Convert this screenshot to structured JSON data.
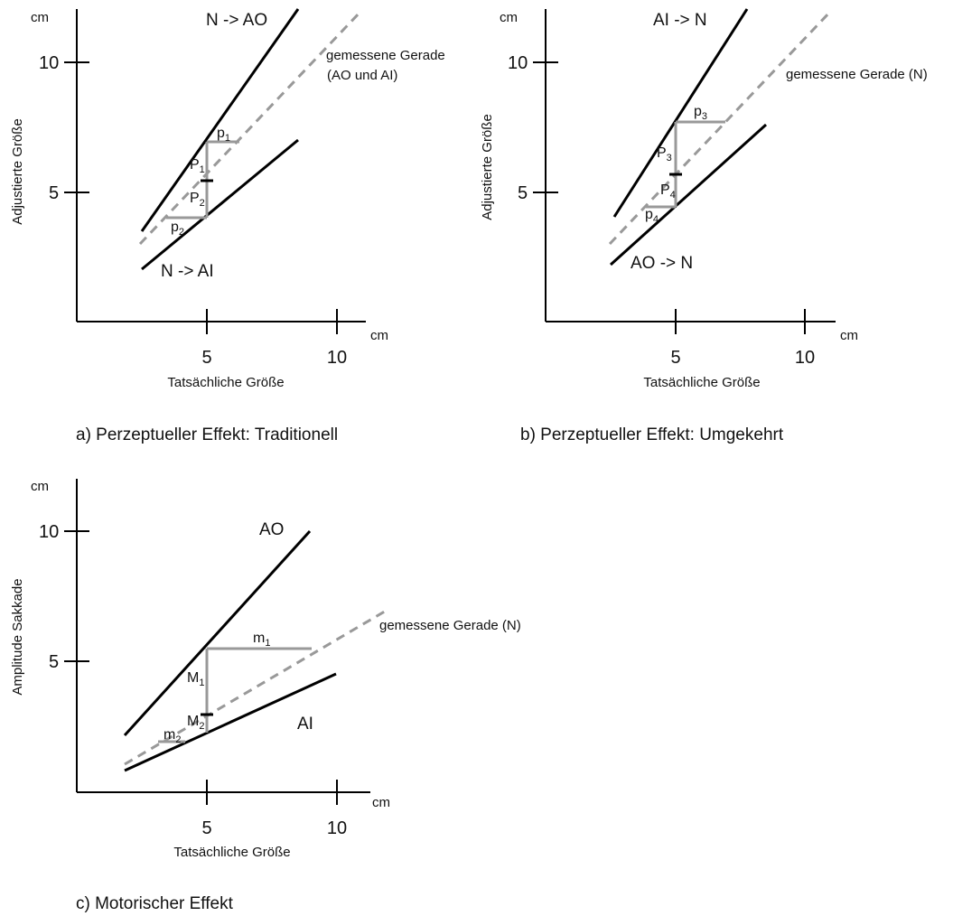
{
  "panels": [
    {
      "id": "a",
      "caption": "a) Perzeptueller Effekt: Traditionell",
      "xaxis": {
        "title": "Tatsächliche Größe",
        "unit": "cm",
        "ticks": [
          "5",
          "10"
        ]
      },
      "yaxis": {
        "title": "Adjustierte Größe",
        "unit": "cm",
        "ticks": [
          "5",
          "10"
        ]
      },
      "lines": [
        {
          "label": "N -> AO",
          "style": "solid",
          "x": [
            2.5,
            8.5
          ],
          "y": [
            3.5,
            11.9
          ]
        },
        {
          "label": "gemessene Gerade",
          "label_line2": "(AO und AI)",
          "style": "dashed",
          "x": [
            2.5,
            11
          ],
          "y": [
            3.0,
            11.9
          ]
        },
        {
          "label": "N -> AI",
          "style": "solid",
          "x": [
            2.5,
            8.5
          ],
          "y": [
            2.0,
            7.0
          ]
        }
      ],
      "segments": [
        {
          "letter": "p",
          "sub": "1"
        },
        {
          "letter": "P",
          "sub": "1"
        },
        {
          "letter": "P",
          "sub": "2"
        },
        {
          "letter": "p",
          "sub": "2"
        }
      ]
    },
    {
      "id": "b",
      "caption": "b) Perzeptueller Effekt: Umgekehrt",
      "xaxis": {
        "title": "Tatsächliche Größe",
        "unit": "cm",
        "ticks": [
          "5",
          "10"
        ]
      },
      "yaxis": {
        "title": "Adjustierte Größe",
        "unit": "cm",
        "ticks": [
          "5",
          "10"
        ]
      },
      "lines": [
        {
          "label": "AI -> N",
          "style": "solid",
          "x": [
            2.7,
            7.7
          ],
          "y": [
            4.0,
            11.9
          ]
        },
        {
          "label": "gemessene Gerade (N)",
          "style": "dashed",
          "x": [
            2.5,
            11
          ],
          "y": [
            3.0,
            11.9
          ]
        },
        {
          "label": "AO -> N",
          "style": "solid",
          "x": [
            2.5,
            8.5
          ],
          "y": [
            2.2,
            7.6
          ]
        }
      ],
      "segments": [
        {
          "letter": "p",
          "sub": "3"
        },
        {
          "letter": "P",
          "sub": "3"
        },
        {
          "letter": "P",
          "sub": "4"
        },
        {
          "letter": "p",
          "sub": "4"
        }
      ]
    },
    {
      "id": "c",
      "caption": "c) Motorischer Effekt",
      "xaxis": {
        "title": "Tatsächliche Größe",
        "unit": "cm",
        "ticks": [
          "5",
          "10"
        ]
      },
      "yaxis": {
        "title": "Amplitude Sakkade",
        "unit": "cm",
        "ticks": [
          "5",
          "10"
        ]
      },
      "lines": [
        {
          "label": "AO",
          "style": "solid",
          "x": [
            1.8,
            9.0
          ],
          "y": [
            2.2,
            10.0
          ]
        },
        {
          "label": "gemessene Gerade (N)",
          "style": "dashed",
          "x": [
            1.8,
            11.0
          ],
          "y": [
            1.2,
            7.0
          ]
        },
        {
          "label": "AI",
          "style": "solid",
          "x": [
            1.8,
            10.0
          ],
          "y": [
            0.9,
            4.5
          ]
        }
      ],
      "segments": [
        {
          "letter": "m",
          "sub": "1"
        },
        {
          "letter": "M",
          "sub": "1"
        },
        {
          "letter": "M",
          "sub": "2"
        },
        {
          "letter": "m",
          "sub": "2"
        }
      ]
    }
  ]
}
